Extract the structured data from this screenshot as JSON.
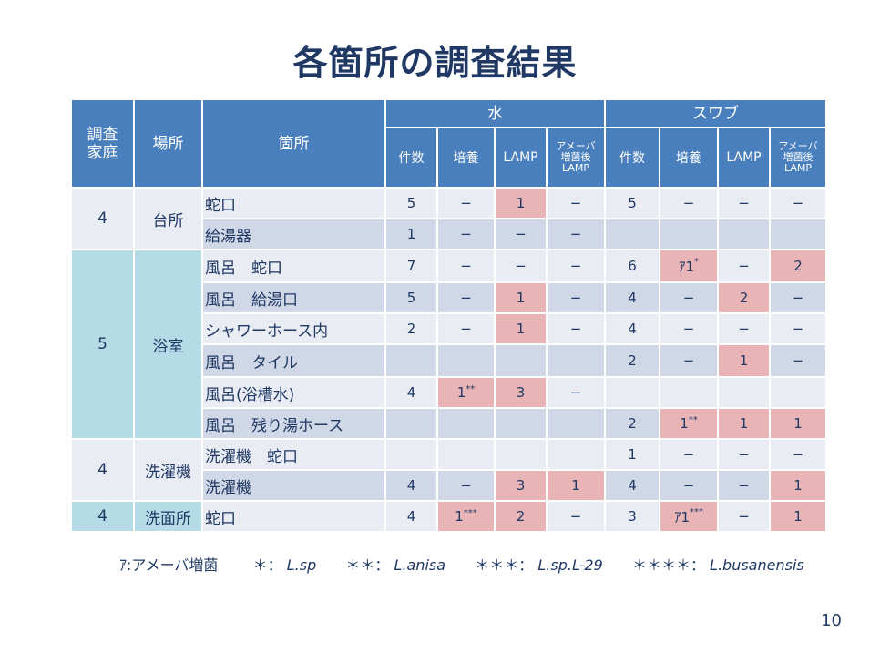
{
  "title": "各箇所の調査結果",
  "header": {
    "house": "調査\n家庭",
    "place": "場所",
    "spot": "箇所",
    "water": "水",
    "swab": "スワブ",
    "count": "件数",
    "culture": "培養",
    "lamp": "LAMP",
    "amoeba_lamp": "アメーバ\n増菌後\nLAMP"
  },
  "rows": [
    {
      "spot": "蛇口",
      "w": [
        "5",
        "−",
        "1",
        "−"
      ],
      "s": [
        "5",
        "−",
        "−",
        "−"
      ]
    },
    {
      "spot": "給湯器",
      "w": [
        "1",
        "−",
        "−",
        "−"
      ],
      "s": [
        "",
        "",
        "",
        ""
      ]
    },
    {
      "spot": "風呂　蛇口",
      "w": [
        "7",
        "−",
        "−",
        "−"
      ],
      "s": [
        "6",
        "ｱ1*",
        "−",
        "2"
      ]
    },
    {
      "spot": "風呂　給湯口",
      "w": [
        "5",
        "−",
        "1",
        "−"
      ],
      "s": [
        "4",
        "−",
        "2",
        "−"
      ]
    },
    {
      "spot": "シャワーホース内",
      "w": [
        "2",
        "−",
        "1",
        "−"
      ],
      "s": [
        "4",
        "−",
        "−",
        "−"
      ]
    },
    {
      "spot": "風呂　タイル",
      "w": [
        "",
        "",
        "",
        ""
      ],
      "s": [
        "2",
        "−",
        "1",
        "−"
      ]
    },
    {
      "spot": "風呂(浴槽水)",
      "w": [
        "4",
        "1**",
        "3",
        "−"
      ],
      "s": [
        "",
        "",
        "",
        ""
      ]
    },
    {
      "spot": "風呂　残り湯ホース",
      "w": [
        "",
        "",
        "",
        ""
      ],
      "s": [
        "2",
        "1**",
        "1",
        "1"
      ]
    },
    {
      "spot": "洗濯機　蛇口",
      "w": [
        "",
        "",
        "",
        ""
      ],
      "s": [
        "1",
        "−",
        "−",
        "−"
      ]
    },
    {
      "spot": "洗濯機",
      "w": [
        "4",
        "−",
        "3",
        "1"
      ],
      "s": [
        "4",
        "−",
        "−",
        "1"
      ]
    },
    {
      "spot": "蛇口",
      "w": [
        "4",
        "1***",
        "2",
        "−"
      ],
      "s": [
        "3",
        "ｱ1***",
        "−",
        "1"
      ]
    }
  ],
  "groups": [
    {
      "house": "4",
      "place": "台所"
    },
    {
      "house": "5",
      "place": "浴室"
    },
    {
      "house": "4",
      "place": "洗濯機"
    },
    {
      "house": "4",
      "place": "洗面所"
    }
  ],
  "footnote": {
    "a": "ｱ:アメーバ増菌",
    "k1": "＊：",
    "v1": "L.sp",
    "k2": "＊＊：",
    "v2": "L.anisa",
    "k3": "＊＊＊：",
    "v3": "L.sp.L-29",
    "k4": "＊＊＊＊：",
    "v4": "L.busanensis"
  },
  "page_number": "10",
  "colors": {
    "header": "#4a7fbd",
    "row_light": "#e9ecf3",
    "row_dark": "#d0d7e6",
    "group_teal": "#b5dce6",
    "highlight": "#e8b4b6",
    "text": "#1f3864"
  }
}
